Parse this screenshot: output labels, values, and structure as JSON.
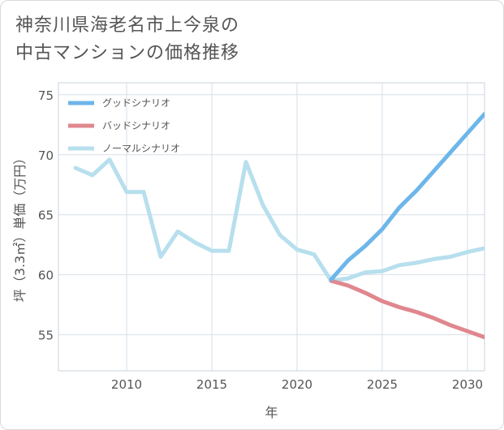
{
  "title_line1": "神奈川県海老名市上今泉の",
  "title_line2": "中古マンションの価格推移",
  "chart_data": {
    "type": "line",
    "xlabel": "年",
    "ylabel": "坪（3.3㎡）単価（万円）",
    "xlim": [
      2006,
      2031
    ],
    "ylim": [
      52,
      76
    ],
    "xticks": [
      2010,
      2015,
      2020,
      2025,
      2030
    ],
    "yticks": [
      55,
      60,
      65,
      70,
      75
    ],
    "grid": true,
    "legend_position": "top-left",
    "series": [
      {
        "name": "グッドシナリオ",
        "color": "#6db6ea",
        "x": [
          2022,
          2023,
          2024,
          2025,
          2026,
          2027,
          2028,
          2029,
          2030,
          2031
        ],
        "y": [
          59.6,
          61.2,
          62.4,
          63.8,
          65.6,
          67.0,
          68.6,
          70.2,
          71.8,
          73.4
        ]
      },
      {
        "name": "バッドシナリオ",
        "color": "#e0878e",
        "x": [
          2022,
          2023,
          2024,
          2025,
          2026,
          2027,
          2028,
          2029,
          2030,
          2031
        ],
        "y": [
          59.5,
          59.1,
          58.5,
          57.8,
          57.3,
          56.9,
          56.4,
          55.8,
          55.3,
          54.8
        ]
      },
      {
        "name": "ノーマルシナリオ",
        "color": "#b7dfee",
        "x": [
          2007,
          2008,
          2009,
          2010,
          2011,
          2012,
          2013,
          2014,
          2015,
          2016,
          2017,
          2018,
          2019,
          2020,
          2021,
          2022,
          2023,
          2024,
          2025,
          2026,
          2027,
          2028,
          2029,
          2030,
          2031
        ],
        "y": [
          68.9,
          68.3,
          69.6,
          66.9,
          66.9,
          61.5,
          63.6,
          62.7,
          62.0,
          62.0,
          69.4,
          65.8,
          63.3,
          62.1,
          61.7,
          59.5,
          59.7,
          60.2,
          60.3,
          60.8,
          61.0,
          61.3,
          61.5,
          61.9,
          62.2
        ]
      }
    ]
  }
}
